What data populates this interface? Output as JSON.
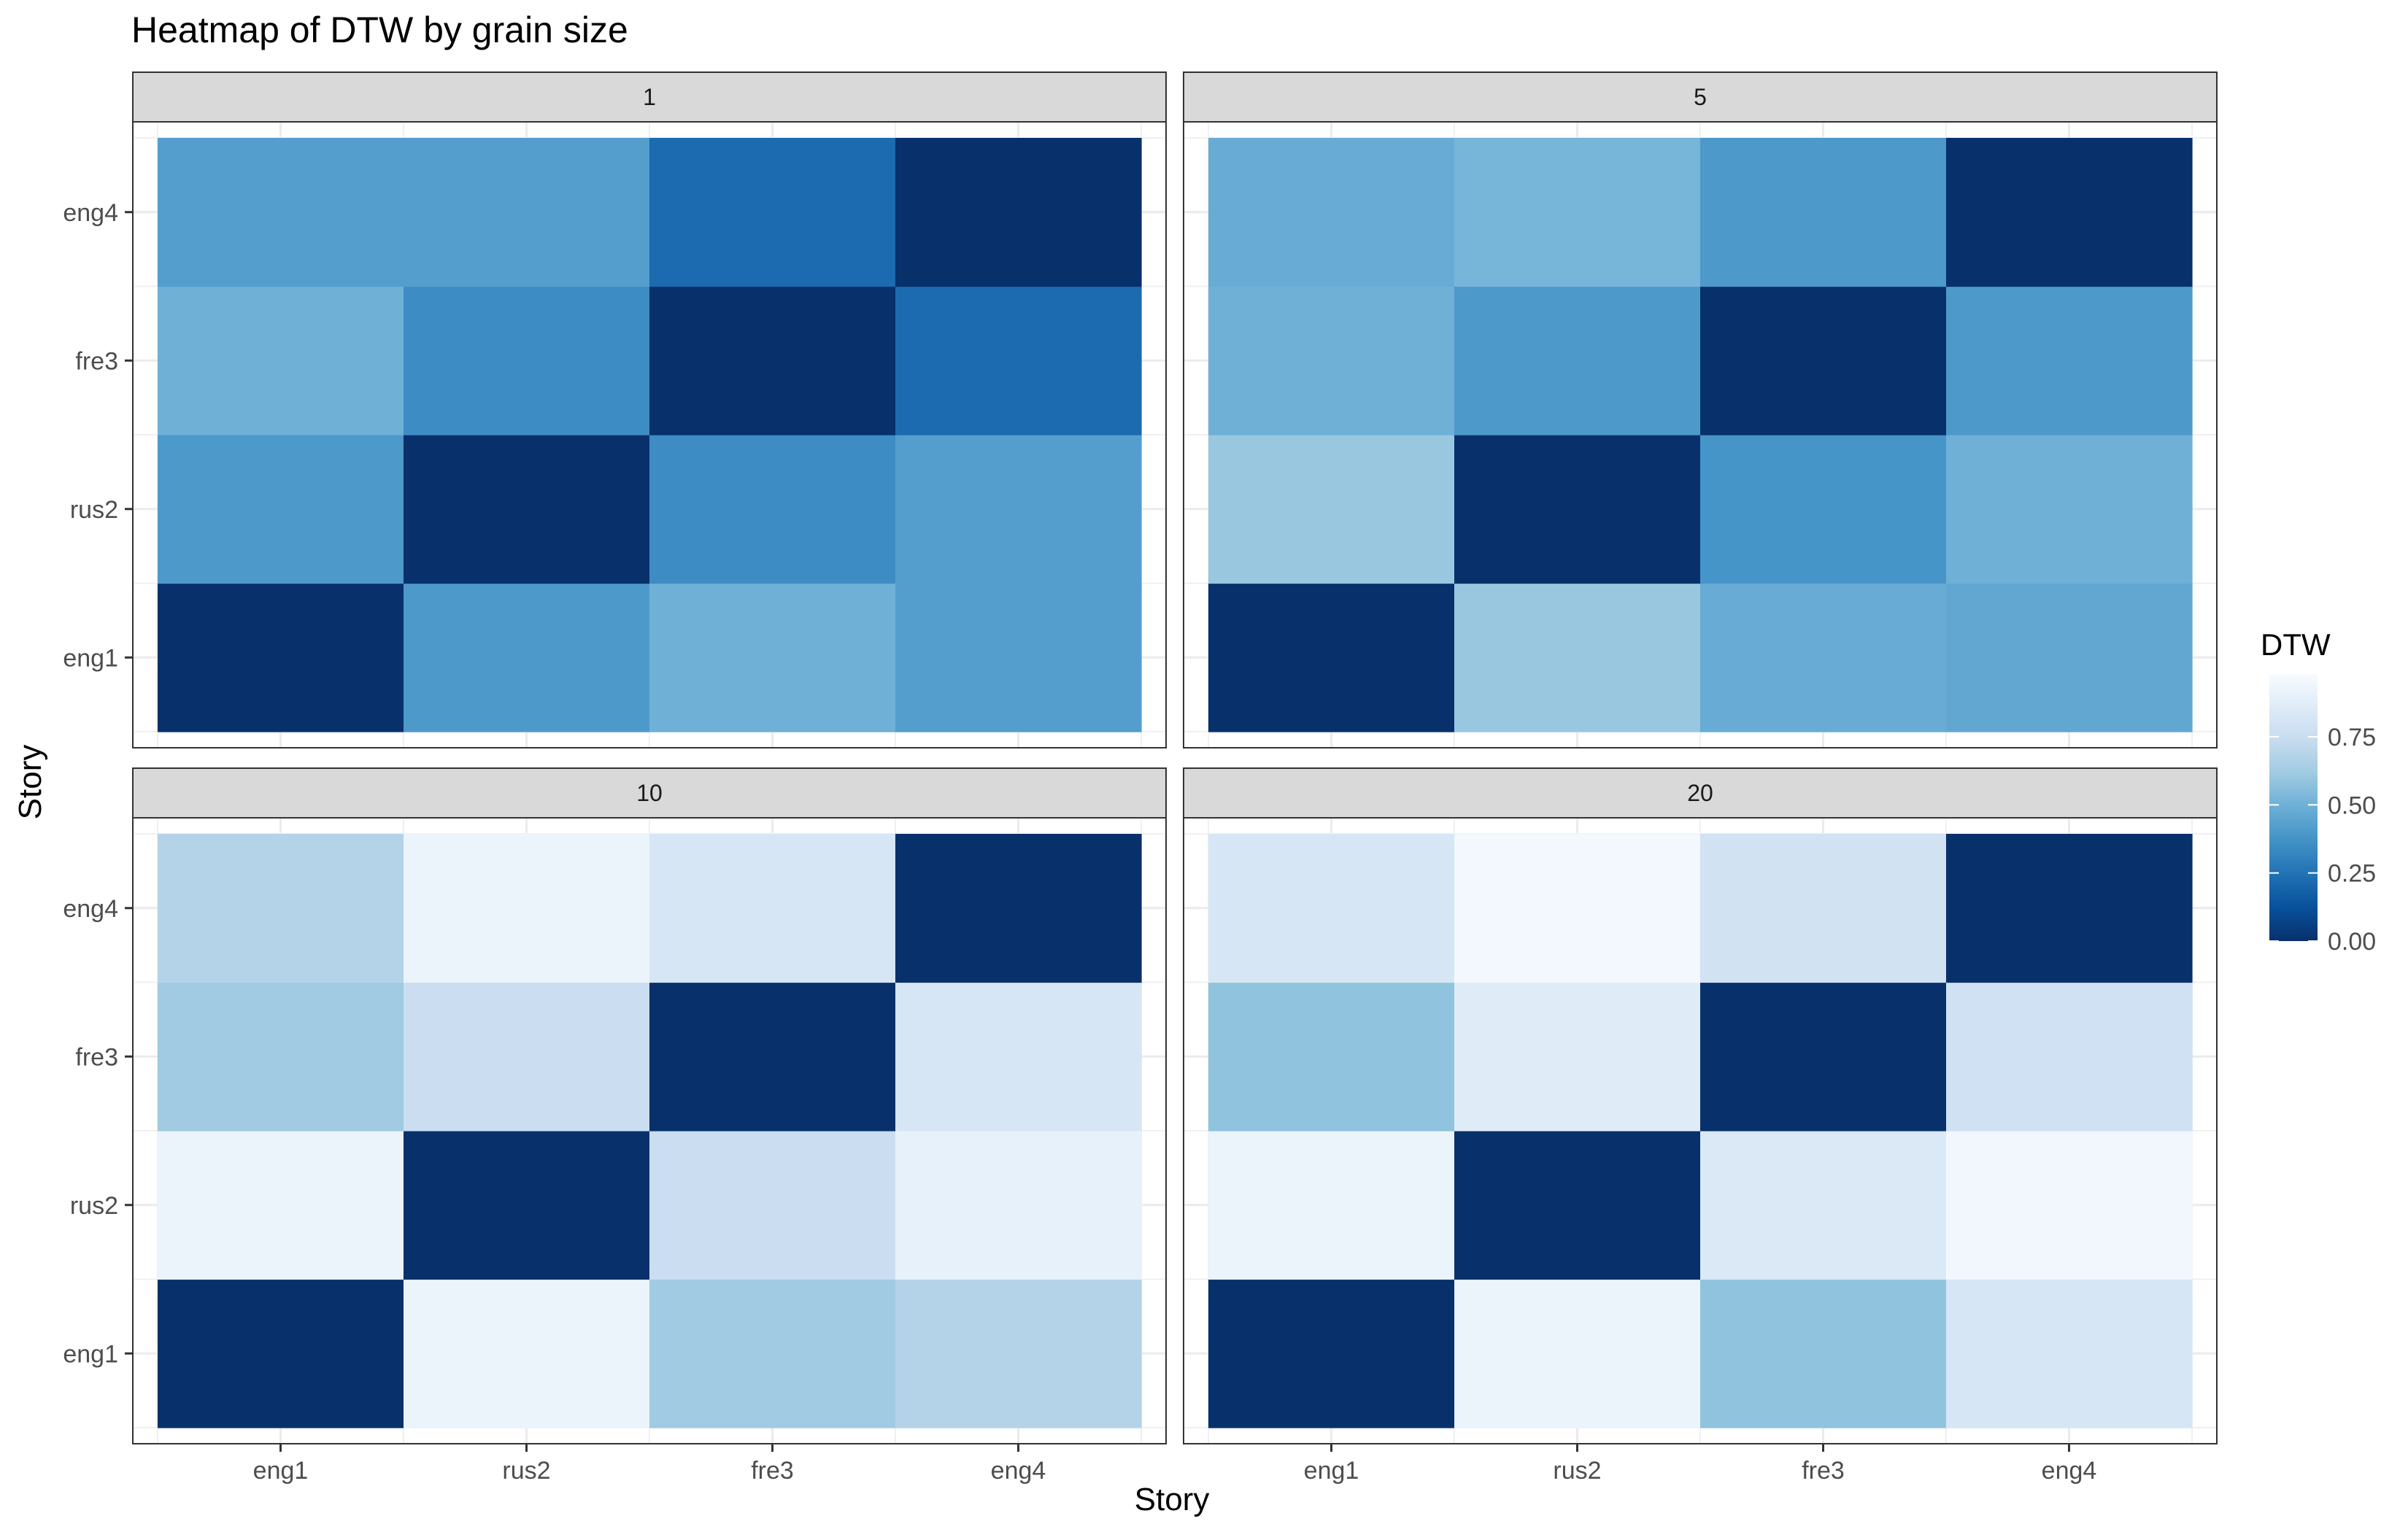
{
  "chart_data": {
    "type": "heatmap",
    "title": "Heatmap of DTW by grain size",
    "xlabel": "Story",
    "ylabel": "Story",
    "x_categories": [
      "eng1",
      "rus2",
      "fre3",
      "eng4"
    ],
    "y_categories": [
      "eng1",
      "rus2",
      "fre3",
      "eng4"
    ],
    "legend": {
      "title": "DTW",
      "ticks": [
        0.0,
        0.25,
        0.5,
        0.75
      ],
      "tick_labels": [
        "0.00",
        "0.25",
        "0.50",
        "0.75"
      ],
      "range": [
        0,
        0.98
      ],
      "colors": [
        "#08306b",
        "#08519c",
        "#2171b5",
        "#4292c6",
        "#6baed6",
        "#9ecae1",
        "#c6dbef",
        "#deebf7",
        "#f7fbff"
      ],
      "placement": "right"
    },
    "panels": [
      {
        "label": "1",
        "rows_y": [
          "eng1",
          "rus2",
          "fre3",
          "eng4"
        ],
        "values": [
          [
            0.0,
            0.4,
            0.5,
            0.42
          ],
          [
            0.4,
            0.0,
            0.35,
            0.42
          ],
          [
            0.5,
            0.35,
            0.0,
            0.22
          ],
          [
            0.42,
            0.42,
            0.22,
            0.0
          ]
        ]
      },
      {
        "label": "5",
        "rows_y": [
          "eng1",
          "rus2",
          "fre3",
          "eng4"
        ],
        "values": [
          [
            0.0,
            0.6,
            0.48,
            0.46
          ],
          [
            0.6,
            0.0,
            0.38,
            0.5
          ],
          [
            0.5,
            0.4,
            0.0,
            0.4
          ],
          [
            0.48,
            0.52,
            0.4,
            0.0
          ]
        ]
      },
      {
        "label": "10",
        "rows_y": [
          "eng1",
          "rus2",
          "fre3",
          "eng4"
        ],
        "values": [
          [
            0.0,
            0.92,
            0.62,
            0.68
          ],
          [
            0.92,
            0.0,
            0.76,
            0.9
          ],
          [
            0.62,
            0.76,
            0.0,
            0.82
          ],
          [
            0.68,
            0.92,
            0.82,
            0.0
          ]
        ]
      },
      {
        "label": "20",
        "rows_y": [
          "eng1",
          "rus2",
          "fre3",
          "eng4"
        ],
        "values": [
          [
            0.0,
            0.92,
            0.58,
            0.82
          ],
          [
            0.92,
            0.0,
            0.84,
            0.95
          ],
          [
            0.58,
            0.86,
            0.0,
            0.78
          ],
          [
            0.82,
            0.96,
            0.79,
            0.0
          ]
        ]
      }
    ]
  }
}
